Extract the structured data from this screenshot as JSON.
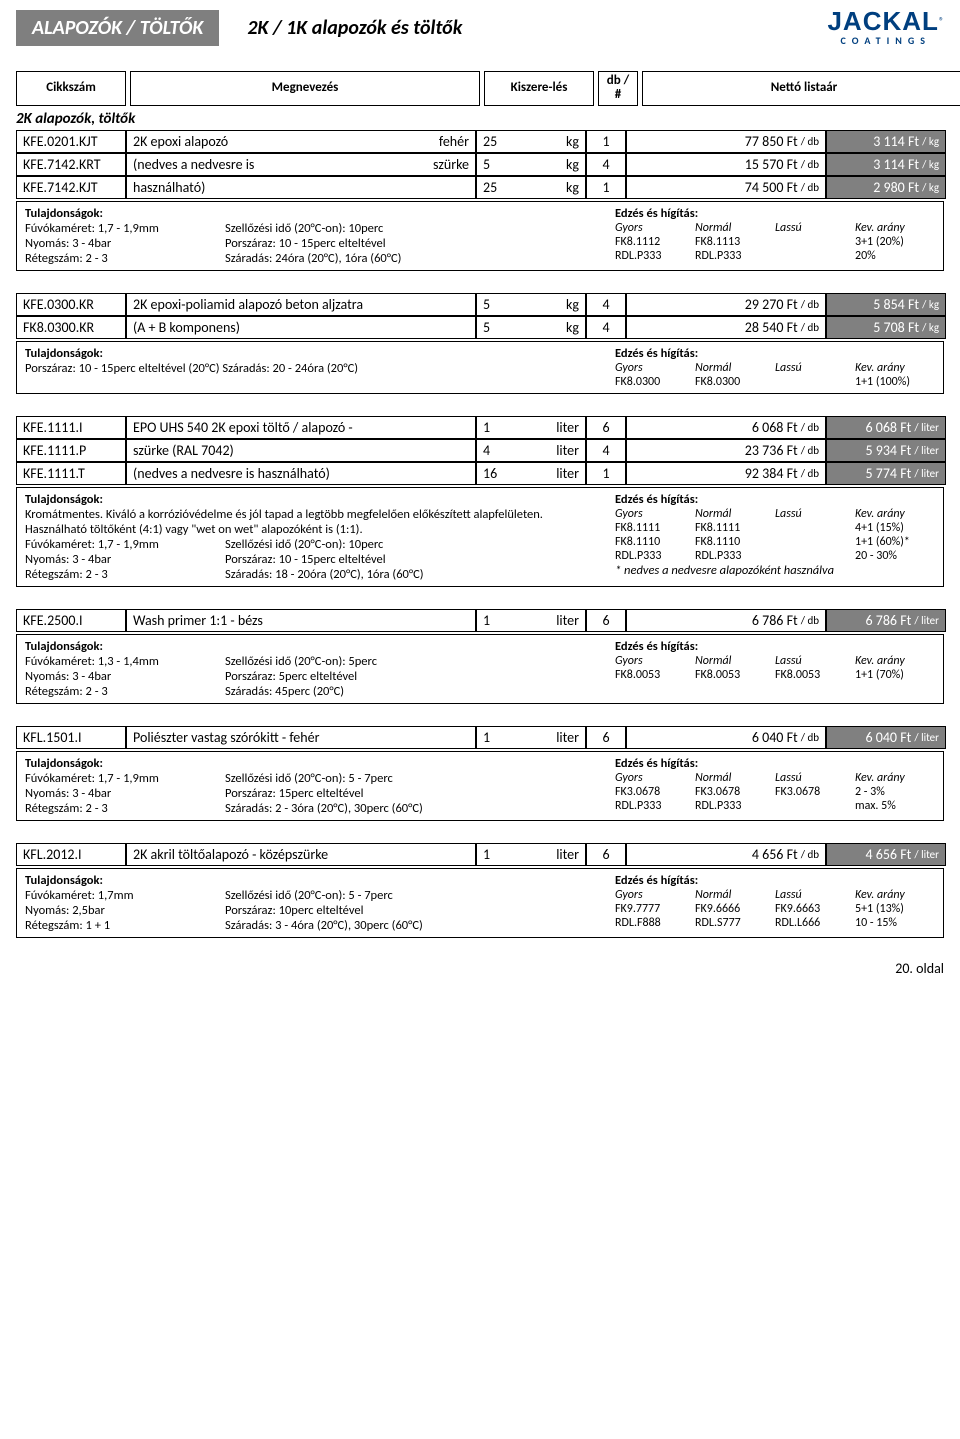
{
  "header": {
    "title": "ALAPOZÓK / TÖLTŐK",
    "subtitle": "2K / 1K alapozók és töltők",
    "logo_text": "JACKAL",
    "logo_sub": "COATINGS",
    "reg": "®"
  },
  "columns": {
    "code": "Cikkszám",
    "name": "Megnevezés",
    "pack": "Kiszere-lés",
    "qty": "db / #",
    "price_col": "Nettó listaár"
  },
  "section_title": "2K alapozók, töltők",
  "products": [
    {
      "rows": [
        {
          "code": "KFE.0201.KJT",
          "name": "2K epoxi alapozó",
          "variant": "fehér",
          "pack_num": "25",
          "pack_unit": "kg",
          "qty": "1",
          "price": "77 850 Ft",
          "price_unit": "/ db",
          "price2": "3 114 Ft",
          "price2_unit": "/ kg"
        },
        {
          "code": "KFE.7142.KRT",
          "name": "(nedves a nedvesre is",
          "variant": "szürke",
          "pack_num": "5",
          "pack_unit": "kg",
          "qty": "4",
          "price": "15 570 Ft",
          "price_unit": "/ db",
          "price2": "3 114 Ft",
          "price2_unit": "/ kg"
        },
        {
          "code": "KFE.7142.KJT",
          "name": "használható)",
          "variant": "",
          "pack_num": "25",
          "pack_unit": "kg",
          "qty": "1",
          "price": "74 500 Ft",
          "price_unit": "/ db",
          "price2": "2 980 Ft",
          "price2_unit": "/ kg"
        }
      ],
      "detail_left_title": "Tulajdonságok:",
      "spec": [
        [
          "Fúvókaméret: 1,7 - 1,9mm",
          "Szellőzési idő (20°C-on): 10perc"
        ],
        [
          "Nyomás: 3 - 4bar",
          "Porszáraz: 10 - 15perc elteltével"
        ],
        [
          "Rétegszám: 2 - 3",
          "Száradás: 24óra (20°C), 1óra (60°C)"
        ]
      ],
      "detail_right_title": "Edzés és hígítás:",
      "mix_hdr": [
        "Gyors",
        "Normál",
        "Lassú",
        "Kev. arány"
      ],
      "mix": [
        [
          "FK8.1112",
          "FK8.1113",
          "",
          "3+1 (20%)"
        ],
        [
          "RDL.P333",
          "RDL.P333",
          "",
          "20%"
        ]
      ]
    },
    {
      "rows": [
        {
          "code": "KFE.0300.KR",
          "name": "2K epoxi-poliamid alapozó beton aljzatra",
          "variant": "",
          "pack_num": "5",
          "pack_unit": "kg",
          "qty": "4",
          "price": "29 270 Ft",
          "price_unit": "/ db",
          "price2": "5 854 Ft",
          "price2_unit": "/ kg"
        },
        {
          "code": "FK8.0300.KR",
          "name": "(A + B komponens)",
          "variant": "",
          "pack_num": "5",
          "pack_unit": "kg",
          "qty": "4",
          "price": "28 540 Ft",
          "price_unit": "/ db",
          "price2": "5 708 Ft",
          "price2_unit": "/ kg"
        }
      ],
      "detail_left_title": "Tulajdonságok:",
      "spec_single": "Porszáraz: 10 - 15perc elteltével (20°C)        Száradás: 20 - 24óra (20°C)",
      "detail_right_title": "Edzés és hígítás:",
      "mix_hdr": [
        "Gyors",
        "Normál",
        "Lassú",
        "Kev. arány"
      ],
      "mix": [
        [
          "FK8.0300",
          "FK8.0300",
          "",
          "1+1 (100%)"
        ]
      ]
    },
    {
      "rows": [
        {
          "code": "KFE.1111.I",
          "name": "EPO UHS 540 2K epoxi töltő / alapozó -",
          "variant": "",
          "pack_num": "1",
          "pack_unit": "liter",
          "qty": "6",
          "price": "6 068 Ft",
          "price_unit": "/ db",
          "price2": "6 068 Ft",
          "price2_unit": "/ liter"
        },
        {
          "code": "KFE.1111.P",
          "name": "szürke (RAL 7042)",
          "variant": "",
          "pack_num": "4",
          "pack_unit": "liter",
          "qty": "4",
          "price": "23 736 Ft",
          "price_unit": "/ db",
          "price2": "5 934 Ft",
          "price2_unit": "/ liter"
        },
        {
          "code": "KFE.1111.T",
          "name": "(nedves a nedvesre is használható)",
          "variant": "",
          "pack_num": "16",
          "pack_unit": "liter",
          "qty": "1",
          "price": "92 384 Ft",
          "price_unit": "/ db",
          "price2": "5 774 Ft",
          "price2_unit": "/ liter"
        }
      ],
      "detail_left_title": "Tulajdonságok:",
      "desc": "Kromátmentes. Kiváló a korrózióvédelme és jól tapad a legtöbb megfelelően előkészített alapfelületen. Használható töltőként (4:1) vagy \"wet on wet\" alapozóként is (1:1).",
      "spec": [
        [
          "Fúvókaméret: 1,7 - 1,9mm",
          "Szellőzési idő (20°C-on): 10perc"
        ],
        [
          "Nyomás: 3 - 4bar",
          "Porszáraz: 10 - 15perc elteltével"
        ],
        [
          "Rétegszám: 2 - 3",
          "Száradás: 18 - 20óra (20°C), 1óra (60°C)"
        ]
      ],
      "detail_right_title": "Edzés és hígítás:",
      "mix_hdr": [
        "Gyors",
        "Normál",
        "Lassú",
        "Kev. arány"
      ],
      "mix": [
        [
          "FK8.1111",
          "FK8.1111",
          "",
          "4+1 (15%)"
        ],
        [
          "FK8.1110",
          "FK8.1110",
          "",
          "1+1 (60%)*"
        ],
        [
          "RDL.P333",
          "RDL.P333",
          "",
          "20 - 30%"
        ]
      ],
      "mix_note": "* nedves a nedvesre alapozóként használva"
    },
    {
      "rows": [
        {
          "code": "KFE.2500.I",
          "name": "Wash primer 1:1 - bézs",
          "variant": "",
          "pack_num": "1",
          "pack_unit": "liter",
          "qty": "6",
          "price": "6 786 Ft",
          "price_unit": "/ db",
          "price2": "6 786 Ft",
          "price2_unit": "/ liter"
        }
      ],
      "detail_left_title": "Tulajdonságok:",
      "spec": [
        [
          "Fúvókaméret: 1,3 - 1,4mm",
          "Szellőzési idő (20°C-on): 5perc"
        ],
        [
          "Nyomás: 3 - 4bar",
          "Porszáraz: 5perc elteltével"
        ],
        [
          "Rétegszám: 2 - 3",
          "Száradás: 45perc (20°C)"
        ]
      ],
      "detail_right_title": "Edzés és hígítás:",
      "mix_hdr": [
        "Gyors",
        "Normál",
        "Lassú",
        "Kev. arány"
      ],
      "mix": [
        [
          "FK8.0053",
          "FK8.0053",
          "FK8.0053",
          "1+1 (70%)"
        ]
      ]
    },
    {
      "rows": [
        {
          "code": "KFL.1501.I",
          "name": "Poliészter vastag szórókitt - fehér",
          "variant": "",
          "pack_num": "1",
          "pack_unit": "liter",
          "qty": "6",
          "price": "6 040 Ft",
          "price_unit": "/ db",
          "price2": "6 040 Ft",
          "price2_unit": "/ liter"
        }
      ],
      "detail_left_title": "Tulajdonságok:",
      "spec": [
        [
          "Fúvókaméret: 1,7 - 1,9mm",
          "Szellőzési idő (20°C-on): 5 - 7perc"
        ],
        [
          "Nyomás: 3 - 4bar",
          "Porszáraz: 15perc elteltével"
        ],
        [
          "Rétegszám: 2 - 3",
          "Száradás: 2 - 3óra (20°C), 30perc (60°C)"
        ]
      ],
      "detail_right_title": "Edzés és hígítás:",
      "mix_hdr": [
        "Gyors",
        "Normál",
        "Lassú",
        "Kev. arány"
      ],
      "mix": [
        [
          "FK3.0678",
          "FK3.0678",
          "FK3.0678",
          "2 - 3%"
        ],
        [
          "RDL.P333",
          "RDL.P333",
          "",
          "max. 5%"
        ]
      ]
    },
    {
      "rows": [
        {
          "code": "KFL.2012.I",
          "name": "2K akril töltőalapozó - középszürke",
          "variant": "",
          "pack_num": "1",
          "pack_unit": "liter",
          "qty": "6",
          "price": "4 656 Ft",
          "price_unit": "/ db",
          "price2": "4 656 Ft",
          "price2_unit": "/ liter"
        }
      ],
      "detail_left_title": "Tulajdonságok:",
      "spec": [
        [
          "Fúvókaméret: 1,7mm",
          "Szellőzési idő (20°C-on): 5 - 7perc"
        ],
        [
          "Nyomás: 2,5bar",
          "Porszáraz: 10perc elteltével"
        ],
        [
          "Rétegszám: 1 + 1",
          "Száradás: 3 - 4óra (20°C), 30perc (60°C)"
        ]
      ],
      "detail_right_title": "Edzés és hígítás:",
      "mix_hdr": [
        "Gyors",
        "Normál",
        "Lassú",
        "Kev. arány"
      ],
      "mix": [
        [
          "FK9.7777",
          "FK9.6666",
          "FK9.6663",
          "5+1 (13%)"
        ],
        [
          "RDL.F888",
          "RDL.S777",
          "RDL.L666",
          "10 - 15%"
        ]
      ]
    }
  ],
  "footer": "20. oldal"
}
